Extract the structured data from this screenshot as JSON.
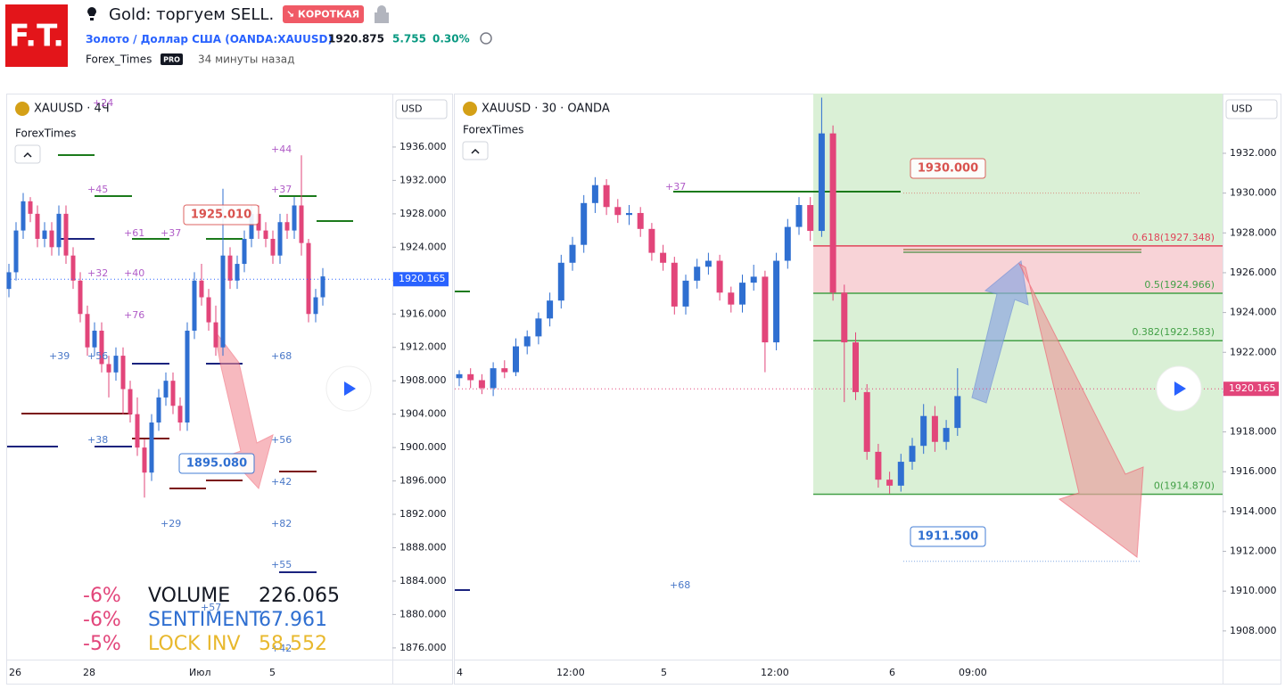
{
  "header": {
    "logo": "F.T.",
    "title": "Gold: торгуем SELL.",
    "badge": "↘ КОРОТКАЯ",
    "symbol_name": "Золото / Доллар США",
    "symbol_code": "(OANDA:XAUUSD)",
    "price": "1920.875",
    "change": "5.755",
    "change_pct": "0.30%",
    "author": "Forex_Times",
    "author_badge": "PRO",
    "time_ago": "34 минуты назад"
  },
  "left_chart": {
    "symbol": "XAUUSD · 4Ч",
    "indicator": "ForexTimes",
    "currency": "USD",
    "up_color": "#2f6fd1",
    "down_color": "#e2457a",
    "ylim": [
      1874.6,
      1942.4
    ],
    "yticks": [
      {
        "value": 1936,
        "label": "1936.000"
      },
      {
        "value": 1932,
        "label": "1932.000"
      },
      {
        "value": 1928,
        "label": "1928.000"
      },
      {
        "value": 1924,
        "label": "1924.000"
      },
      {
        "value": 1920,
        "label": "1920.000"
      },
      {
        "value": 1916,
        "label": "1916.000"
      },
      {
        "value": 1912,
        "label": "1912.000"
      },
      {
        "value": 1908,
        "label": "1908.000"
      },
      {
        "value": 1904,
        "label": "1904.000"
      },
      {
        "value": 1900,
        "label": "1900.000"
      },
      {
        "value": 1896,
        "label": "1896.000"
      },
      {
        "value": 1892,
        "label": "1892.000"
      },
      {
        "value": 1888,
        "label": "1888.000"
      },
      {
        "value": 1884,
        "label": "1884.000"
      },
      {
        "value": 1880,
        "label": "1880.000"
      },
      {
        "value": 1876,
        "label": "1876.000"
      }
    ],
    "last_price": {
      "value": 1920.165,
      "label": "1920.165"
    },
    "x_labels": [
      "26",
      "28",
      "Июл",
      "5"
    ],
    "callouts": [
      {
        "value": 1925.01,
        "label": "1925.010",
        "color": "#d9534f"
      },
      {
        "value": 1895.08,
        "label": "1895.080",
        "color": "#2f6fd1"
      }
    ],
    "annotations": [
      {
        "text": "+24",
        "color": "#b05cc7"
      },
      {
        "text": "+45",
        "color": "#b05cc7"
      },
      {
        "text": "+61",
        "color": "#b05cc7"
      },
      {
        "text": "+37",
        "color": "#b05cc7"
      },
      {
        "text": "+32",
        "color": "#b05cc7"
      },
      {
        "text": "+40",
        "color": "#b05cc7"
      },
      {
        "text": "+76",
        "color": "#b05cc7"
      },
      {
        "text": "+39",
        "color": "#4a78c8"
      },
      {
        "text": "+56",
        "color": "#4a78c8"
      },
      {
        "text": "+38",
        "color": "#4a78c8"
      },
      {
        "text": "+29",
        "color": "#4a78c8"
      },
      {
        "text": "+44",
        "color": "#b05cc7"
      },
      {
        "text": "+37",
        "color": "#b05cc7"
      },
      {
        "text": "+68",
        "color": "#4a78c8"
      },
      {
        "text": "+56",
        "color": "#4a78c8"
      },
      {
        "text": "+42",
        "color": "#4a78c8"
      },
      {
        "text": "+82",
        "color": "#4a78c8"
      },
      {
        "text": "+55",
        "color": "#4a78c8"
      },
      {
        "text": "+57",
        "color": "#4a78c8"
      },
      {
        "text": "+42",
        "color": "#4a78c8"
      }
    ],
    "stats": [
      [
        "-6%",
        "VOLUME",
        "226.065"
      ],
      [
        "-6%",
        "SENTIMENT",
        "67.961"
      ],
      [
        "-5%",
        "LOCK INV",
        "58.552"
      ]
    ],
    "candles": [
      [
        1919,
        1922,
        1918,
        1921
      ],
      [
        1921,
        1927,
        1920,
        1926
      ],
      [
        1926,
        1930.5,
        1925,
        1929.5
      ],
      [
        1929.5,
        1930,
        1927,
        1928
      ],
      [
        1928,
        1929,
        1924,
        1925
      ],
      [
        1925,
        1927,
        1924,
        1926
      ],
      [
        1926,
        1927,
        1923,
        1924
      ],
      [
        1924,
        1929,
        1923,
        1928
      ],
      [
        1928,
        1929,
        1922,
        1923
      ],
      [
        1923,
        1924,
        1919,
        1920
      ],
      [
        1920,
        1921,
        1915,
        1916
      ],
      [
        1916,
        1917,
        1911,
        1912
      ],
      [
        1912,
        1915,
        1911,
        1914
      ],
      [
        1914,
        1915,
        1909,
        1910
      ],
      [
        1910,
        1911,
        1906,
        1909
      ],
      [
        1909,
        1912,
        1908,
        1911
      ],
      [
        1911,
        1912,
        1904,
        1907
      ],
      [
        1907,
        1908,
        1903,
        1904
      ],
      [
        1904,
        1906,
        1899,
        1900
      ],
      [
        1900,
        1901,
        1894,
        1897
      ],
      [
        1897,
        1904,
        1896,
        1903
      ],
      [
        1903,
        1907,
        1902,
        1906
      ],
      [
        1906,
        1909,
        1905,
        1908
      ],
      [
        1908,
        1909,
        1904,
        1905
      ],
      [
        1905,
        1906,
        1902,
        1903
      ],
      [
        1903,
        1915,
        1902,
        1914
      ],
      [
        1914,
        1921,
        1913,
        1920
      ],
      [
        1920,
        1922,
        1917,
        1918
      ],
      [
        1918,
        1919,
        1914,
        1915
      ],
      [
        1915,
        1917,
        1911,
        1912
      ],
      [
        1912,
        1931,
        1911,
        1923
      ],
      [
        1923,
        1924,
        1919,
        1920
      ],
      [
        1920,
        1923,
        1919,
        1922
      ],
      [
        1922,
        1926,
        1921,
        1925
      ],
      [
        1925,
        1929,
        1924,
        1928
      ],
      [
        1928,
        1929,
        1925,
        1926
      ],
      [
        1926,
        1927,
        1924,
        1925
      ],
      [
        1925,
        1926,
        1922,
        1923
      ],
      [
        1923,
        1928,
        1922,
        1927
      ],
      [
        1927,
        1928,
        1925,
        1926
      ],
      [
        1926,
        1930,
        1925,
        1929
      ],
      [
        1929,
        1935,
        1923,
        1924.5
      ],
      [
        1924.5,
        1925,
        1915,
        1916
      ],
      [
        1916,
        1919,
        1915,
        1918
      ],
      [
        1918,
        1921.5,
        1917,
        1920.5
      ]
    ]
  },
  "right_chart": {
    "symbol": "XAUUSD · 30 · OANDA",
    "indicator": "ForexTimes",
    "currency": "USD",
    "up_color": "#2f6fd1",
    "down_color": "#e2457a",
    "ylim": [
      1906.56,
      1935.0
    ],
    "yticks": [
      {
        "value": 1932,
        "label": "1932.000"
      },
      {
        "value": 1930,
        "label": "1930.000"
      },
      {
        "value": 1928,
        "label": "1928.000"
      },
      {
        "value": 1926,
        "label": "1926.000"
      },
      {
        "value": 1924,
        "label": "1924.000"
      },
      {
        "value": 1922,
        "label": "1922.000"
      },
      {
        "value": 1920,
        "label": "1920.000"
      },
      {
        "value": 1918,
        "label": "1918.000"
      },
      {
        "value": 1916,
        "label": "1916.000"
      },
      {
        "value": 1914,
        "label": "1914.000"
      },
      {
        "value": 1912,
        "label": "1912.000"
      },
      {
        "value": 1910,
        "label": "1910.000"
      },
      {
        "value": 1908,
        "label": "1908.000"
      }
    ],
    "last_price": {
      "value": 1920.165,
      "label": "1920.165"
    },
    "x_labels": [
      "4",
      "12:00",
      "5",
      "12:00",
      "6",
      "09:00"
    ],
    "fib_levels": [
      {
        "value": 1927.348,
        "label": "0.618(1927.348)",
        "color": "#e0455a"
      },
      {
        "value": 1924.966,
        "label": "0.5(1924.966)",
        "color": "#43a047"
      },
      {
        "value": 1922.583,
        "label": "0.382(1922.583)",
        "color": "#43a047"
      },
      {
        "value": 1914.87,
        "label": "0(1914.870)",
        "color": "#43a047"
      }
    ],
    "callouts": [
      {
        "value": 1930.0,
        "label": "1930.000",
        "color": "#d9534f"
      },
      {
        "value": 1911.5,
        "label": "1911.500",
        "color": "#2f6fd1"
      }
    ],
    "annotations": [
      {
        "text": "+37",
        "color": "#b05cc7"
      },
      {
        "text": "+68",
        "color": "#4a78c8"
      }
    ],
    "candles": [
      [
        1920.7,
        1921.1,
        1920.3,
        1920.9
      ],
      [
        1920.9,
        1921.2,
        1920.2,
        1920.6
      ],
      [
        1920.6,
        1920.9,
        1919.9,
        1920.2
      ],
      [
        1920.2,
        1921.5,
        1919.8,
        1921.2
      ],
      [
        1921.2,
        1921.6,
        1920.7,
        1921.0
      ],
      [
        1921.0,
        1922.7,
        1920.8,
        1922.3
      ],
      [
        1922.3,
        1923.1,
        1921.9,
        1922.8
      ],
      [
        1922.8,
        1924.0,
        1922.4,
        1923.7
      ],
      [
        1923.7,
        1925.0,
        1923.3,
        1924.6
      ],
      [
        1924.6,
        1926.9,
        1924.2,
        1926.5
      ],
      [
        1926.5,
        1927.8,
        1926.1,
        1927.4
      ],
      [
        1927.4,
        1929.9,
        1927.0,
        1929.5
      ],
      [
        1929.5,
        1930.8,
        1929.0,
        1930.4
      ],
      [
        1930.4,
        1930.7,
        1928.9,
        1929.3
      ],
      [
        1929.3,
        1929.7,
        1928.5,
        1928.9
      ],
      [
        1928.9,
        1929.4,
        1928.4,
        1929.0
      ],
      [
        1929.0,
        1929.3,
        1927.8,
        1928.2
      ],
      [
        1928.2,
        1928.5,
        1926.6,
        1927.0
      ],
      [
        1927.0,
        1927.4,
        1926.1,
        1926.5
      ],
      [
        1926.5,
        1926.8,
        1923.9,
        1924.3
      ],
      [
        1924.3,
        1925.9,
        1923.9,
        1925.6
      ],
      [
        1925.6,
        1926.7,
        1925.2,
        1926.3
      ],
      [
        1926.3,
        1927.0,
        1925.9,
        1926.6
      ],
      [
        1926.6,
        1926.9,
        1924.6,
        1925.0
      ],
      [
        1925.0,
        1925.3,
        1924.0,
        1924.4
      ],
      [
        1924.4,
        1925.9,
        1924.0,
        1925.5
      ],
      [
        1925.5,
        1926.4,
        1925.1,
        1925.8
      ],
      [
        1925.8,
        1926.1,
        1921.0,
        1922.5
      ],
      [
        1922.5,
        1927.0,
        1922.1,
        1926.6
      ],
      [
        1926.6,
        1928.7,
        1926.2,
        1928.3
      ],
      [
        1928.3,
        1929.8,
        1927.9,
        1929.4
      ],
      [
        1929.4,
        1929.8,
        1927.6,
        1928.1
      ],
      [
        1928.1,
        1934.8,
        1927.8,
        1933.0
      ],
      [
        1933.0,
        1933.4,
        1924.6,
        1925.0
      ],
      [
        1925.0,
        1925.4,
        1919.5,
        1922.5
      ],
      [
        1922.5,
        1923.0,
        1919.6,
        1920.0
      ],
      [
        1920.0,
        1920.4,
        1916.6,
        1917.0
      ],
      [
        1917.0,
        1917.4,
        1915.2,
        1915.6
      ],
      [
        1915.6,
        1916.0,
        1914.9,
        1915.3
      ],
      [
        1915.3,
        1916.9,
        1915.0,
        1916.5
      ],
      [
        1916.5,
        1917.7,
        1916.1,
        1917.3
      ],
      [
        1917.3,
        1919.4,
        1916.9,
        1918.8
      ],
      [
        1918.8,
        1919.3,
        1917.0,
        1917.5
      ],
      [
        1917.5,
        1918.6,
        1917.1,
        1918.2
      ],
      [
        1918.2,
        1921.2,
        1917.8,
        1919.8
      ]
    ]
  }
}
